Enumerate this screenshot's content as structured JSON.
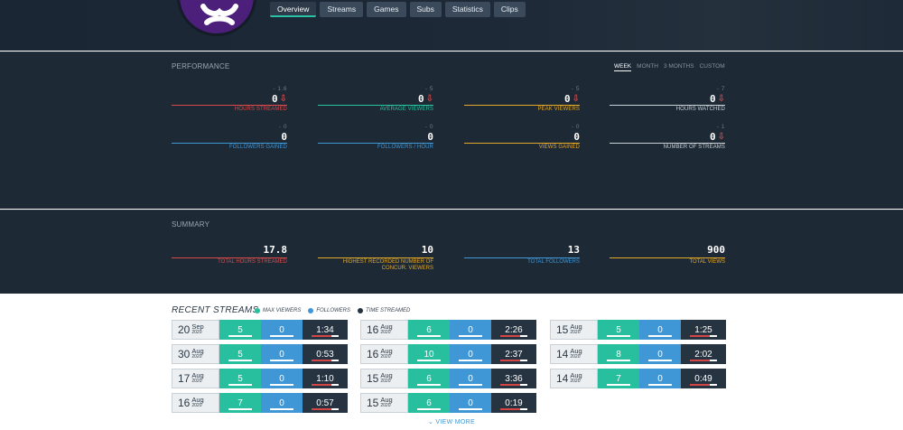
{
  "header": {
    "tabs": [
      {
        "label": "Overview",
        "active": true
      },
      {
        "label": "Streams",
        "active": false
      },
      {
        "label": "Games",
        "active": false
      },
      {
        "label": "Subs",
        "active": false
      },
      {
        "label": "Statistics",
        "active": false
      },
      {
        "label": "Clips",
        "active": false
      }
    ]
  },
  "performance": {
    "title": "PERFORMANCE",
    "periods": [
      {
        "label": "WEEK",
        "active": true
      },
      {
        "label": "MONTH",
        "active": false
      },
      {
        "label": "3 MONTHS",
        "active": false
      },
      {
        "label": "CUSTOM",
        "active": false
      }
    ],
    "stats": [
      {
        "delta": "- 1.6",
        "value": "0",
        "down": true,
        "label": "HOURS STREAMED",
        "color": "#d94a4a"
      },
      {
        "delta": "- 5",
        "value": "0",
        "down": true,
        "label": "AVERAGE VIEWERS",
        "color": "#29c3a4"
      },
      {
        "delta": "- 5",
        "value": "0",
        "down": true,
        "label": "PEAK VIEWERS",
        "color": "#e3a82a"
      },
      {
        "delta": "- 7",
        "value": "0",
        "down": true,
        "label": "HOURS WATCHED",
        "color": "#c9d0d6"
      },
      {
        "delta": "- 0",
        "value": "0",
        "down": false,
        "label": "FOLLOWERS GAINED",
        "color": "#3f97d6"
      },
      {
        "delta": "- 0",
        "value": "0",
        "down": false,
        "label": "FOLLOWERS / HOUR",
        "color": "#3f97d6"
      },
      {
        "delta": "- 0",
        "value": "0",
        "down": false,
        "label": "VIEWS GAINED",
        "color": "#e3a82a"
      },
      {
        "delta": "- 1",
        "value": "0",
        "down": true,
        "label": "NUMBER OF STREAMS",
        "color": "#c9d0d6"
      }
    ]
  },
  "summary": {
    "title": "SUMMARY",
    "stats": [
      {
        "value": "17.8",
        "label": "TOTAL HOURS STREAMED",
        "color": "#d94a4a"
      },
      {
        "value": "10",
        "label": "HIGHEST RECORDED NUMBER OF CONCUR. VIEWERS",
        "color": "#e3a82a"
      },
      {
        "value": "13",
        "label": "TOTAL FOLLOWERS",
        "color": "#3f97d6"
      },
      {
        "value": "900",
        "label": "TOTAL VIEWS",
        "color": "#e3a82a"
      }
    ]
  },
  "recent": {
    "title": "RECENT STREAMS",
    "legend": [
      {
        "label": "MAX VIEWERS",
        "color": "#28bf9e"
      },
      {
        "label": "FOLLOWERS",
        "color": "#3f97d6"
      },
      {
        "label": "TIME STREAMED",
        "color": "#263442"
      }
    ],
    "streams": [
      {
        "day": "20",
        "month": "Sep",
        "year": "2020",
        "viewers": "5",
        "followers": "0",
        "time": "1:34"
      },
      {
        "day": "16",
        "month": "Aug",
        "year": "2020",
        "viewers": "6",
        "followers": "0",
        "time": "2:26"
      },
      {
        "day": "15",
        "month": "Aug",
        "year": "2020",
        "viewers": "5",
        "followers": "0",
        "time": "1:25"
      },
      {
        "day": "30",
        "month": "Aug",
        "year": "2020",
        "viewers": "5",
        "followers": "0",
        "time": "0:53"
      },
      {
        "day": "16",
        "month": "Aug",
        "year": "2020",
        "viewers": "10",
        "followers": "0",
        "time": "2:37"
      },
      {
        "day": "14",
        "month": "Aug",
        "year": "2020",
        "viewers": "8",
        "followers": "0",
        "time": "2:02"
      },
      {
        "day": "17",
        "month": "Aug",
        "year": "2020",
        "viewers": "5",
        "followers": "0",
        "time": "1:10"
      },
      {
        "day": "15",
        "month": "Aug",
        "year": "2020",
        "viewers": "6",
        "followers": "0",
        "time": "3:36"
      },
      {
        "day": "14",
        "month": "Aug",
        "year": "2020",
        "viewers": "7",
        "followers": "0",
        "time": "0:49"
      },
      {
        "day": "16",
        "month": "Aug",
        "year": "2020",
        "viewers": "7",
        "followers": "0",
        "time": "0:57"
      },
      {
        "day": "15",
        "month": "Aug",
        "year": "2020",
        "viewers": "6",
        "followers": "0",
        "time": "0:19"
      }
    ],
    "view_more": "VIEW MORE"
  }
}
